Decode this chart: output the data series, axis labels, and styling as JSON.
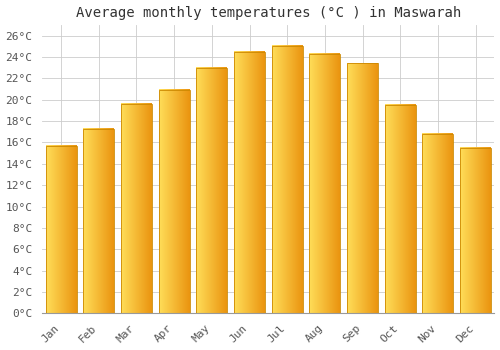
{
  "title": "Average monthly temperatures (°C ) in Maswarah",
  "months": [
    "Jan",
    "Feb",
    "Mar",
    "Apr",
    "May",
    "Jun",
    "Jul",
    "Aug",
    "Sep",
    "Oct",
    "Nov",
    "Dec"
  ],
  "values": [
    15.7,
    17.3,
    19.6,
    20.9,
    23.0,
    24.5,
    25.0,
    24.3,
    23.4,
    19.5,
    16.8,
    15.5
  ],
  "bar_color_left": "#FFD966",
  "bar_color_right": "#E8920A",
  "bar_edge_color": "#CC8800",
  "background_color": "#FFFFFF",
  "grid_color": "#CCCCCC",
  "ytick_labels": [
    "0°C",
    "2°C",
    "4°C",
    "6°C",
    "8°C",
    "10°C",
    "12°C",
    "14°C",
    "16°C",
    "18°C",
    "20°C",
    "22°C",
    "24°C",
    "26°C"
  ],
  "ytick_values": [
    0,
    2,
    4,
    6,
    8,
    10,
    12,
    14,
    16,
    18,
    20,
    22,
    24,
    26
  ],
  "ylim": [
    0,
    27
  ],
  "title_fontsize": 10,
  "tick_fontsize": 8,
  "font_family": "monospace"
}
